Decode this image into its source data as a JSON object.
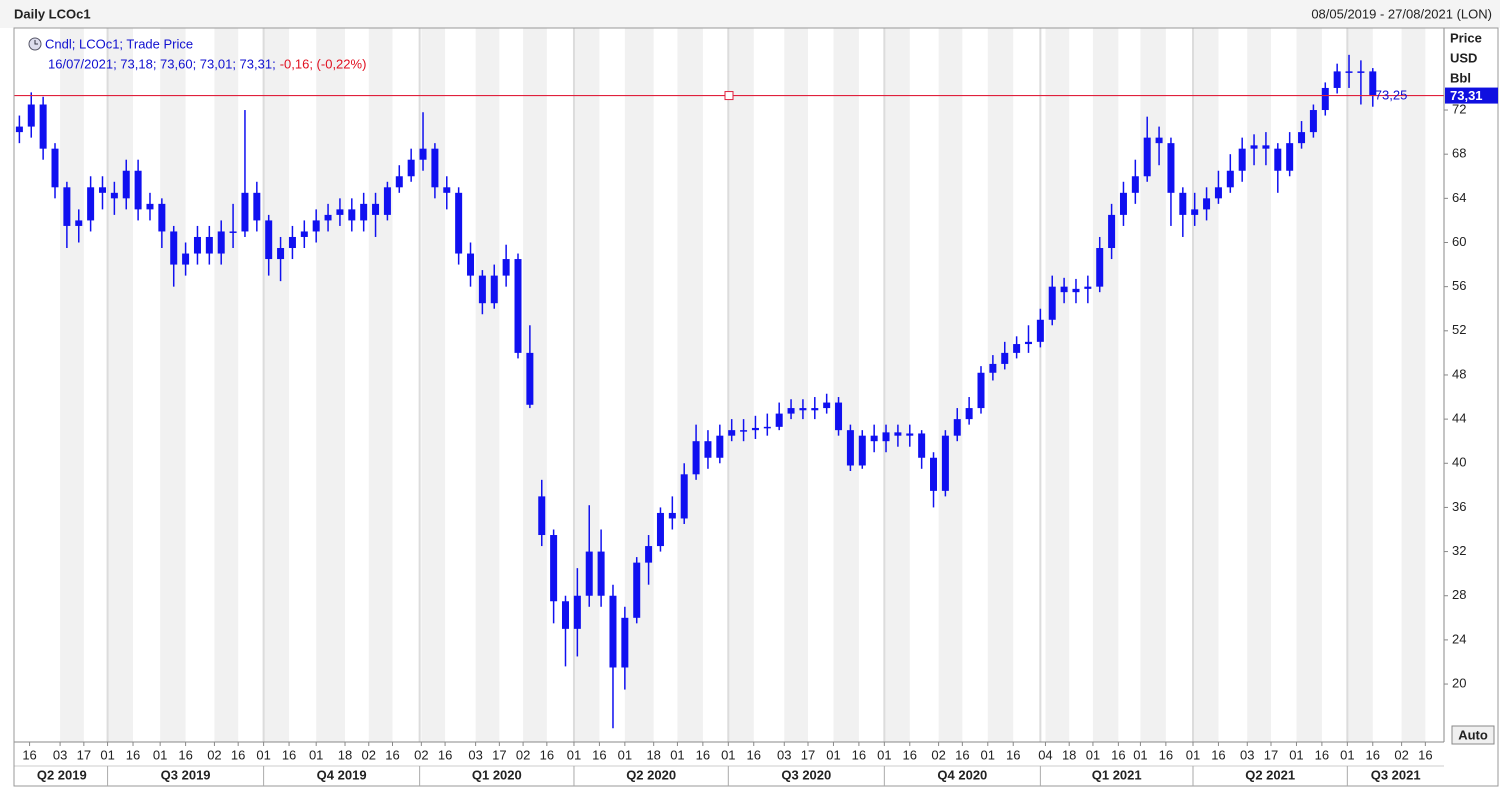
{
  "chart_data": {
    "type": "candlestick",
    "title": "Daily LCOc1",
    "subtitle": "08/05/2019 - 27/08/2021 (LON)",
    "legend_label": "Cndl; LCOc1; Trade Price",
    "legend_values": "16/07/2021; 73,18; 73,60; 73,01; 73,31;",
    "legend_change": "-0,16; (-0,22%)",
    "y_axis_title": "Price",
    "y_axis_unit": "USD",
    "y_axis_per": "Bbl",
    "auto_button": "Auto",
    "color": "#1010f0",
    "line_color": "#e0203c",
    "x": [
      "2019-05-10",
      "2019-05-17",
      "2019-05-24",
      "2019-05-31",
      "2019-06-07",
      "2019-06-14",
      "2019-06-21",
      "2019-06-28",
      "2019-07-05",
      "2019-07-12",
      "2019-07-19",
      "2019-07-26",
      "2019-08-02",
      "2019-08-09",
      "2019-08-16",
      "2019-08-23",
      "2019-08-30",
      "2019-09-06",
      "2019-09-13",
      "2019-09-20",
      "2019-09-27",
      "2019-10-04",
      "2019-10-11",
      "2019-10-18",
      "2019-10-25",
      "2019-11-01",
      "2019-11-08",
      "2019-11-15",
      "2019-11-22",
      "2019-11-29",
      "2019-12-06",
      "2019-12-13",
      "2019-12-20",
      "2019-12-27",
      "2020-01-03",
      "2020-01-10",
      "2020-01-17",
      "2020-01-24",
      "2020-01-31",
      "2020-02-07",
      "2020-02-14",
      "2020-02-21",
      "2020-02-28",
      "2020-03-06",
      "2020-03-13",
      "2020-03-20",
      "2020-03-27",
      "2020-04-03",
      "2020-04-10",
      "2020-04-17",
      "2020-04-24",
      "2020-05-01",
      "2020-05-08",
      "2020-05-15",
      "2020-05-22",
      "2020-05-29",
      "2020-06-05",
      "2020-06-12",
      "2020-06-19",
      "2020-06-26",
      "2020-07-03",
      "2020-07-10",
      "2020-07-17",
      "2020-07-24",
      "2020-07-31",
      "2020-08-07",
      "2020-08-14",
      "2020-08-21",
      "2020-08-28",
      "2020-09-04",
      "2020-09-11",
      "2020-09-18",
      "2020-09-25",
      "2020-10-02",
      "2020-10-09",
      "2020-10-16",
      "2020-10-23",
      "2020-10-30",
      "2020-11-06",
      "2020-11-13",
      "2020-11-20",
      "2020-11-27",
      "2020-12-04",
      "2020-12-11",
      "2020-12-18",
      "2020-12-25",
      "2021-01-01",
      "2021-01-08",
      "2021-01-15",
      "2021-01-22",
      "2021-01-29",
      "2021-02-05",
      "2021-02-12",
      "2021-02-19",
      "2021-02-26",
      "2021-03-05",
      "2021-03-12",
      "2021-03-19",
      "2021-03-26",
      "2021-04-02",
      "2021-04-09",
      "2021-04-16",
      "2021-04-23",
      "2021-04-30",
      "2021-05-07",
      "2021-05-14",
      "2021-05-21",
      "2021-05-28",
      "2021-06-04",
      "2021-06-11",
      "2021-06-18",
      "2021-06-25",
      "2021-07-02",
      "2021-07-09",
      "2021-07-16"
    ],
    "open": [
      70,
      70.5,
      72.5,
      68.5,
      65,
      61.5,
      62,
      65,
      64.5,
      64,
      66.5,
      63,
      63.5,
      61,
      58,
      59,
      60.5,
      59,
      61,
      61,
      64.5,
      62,
      58.5,
      59.5,
      60.5,
      61,
      62,
      62.5,
      63,
      62,
      63.5,
      62.5,
      65,
      66,
      67.5,
      68.5,
      65,
      64.5,
      59,
      57,
      54.5,
      57,
      58.5,
      50,
      37,
      33.5,
      27.5,
      25,
      28,
      32,
      28,
      21.5,
      26,
      31,
      32.5,
      35.5,
      35,
      39,
      42,
      40.5,
      42.5,
      43,
      43,
      43.2,
      43.3,
      44.5,
      45,
      44.8,
      45,
      45.5,
      43,
      39.8,
      42.5,
      42,
      42.8,
      42.5,
      42.7,
      40.5,
      37.5,
      42.5,
      44,
      45,
      48.2,
      49,
      50,
      50.8,
      51,
      53,
      56,
      55.5,
      55.8,
      56,
      59.5,
      62.5,
      64.5,
      66,
      69.5,
      69,
      64.5,
      62.5,
      63,
      64,
      65,
      66.5,
      68.5,
      68.8,
      68.5,
      66.5,
      69,
      70,
      72,
      74,
      75.5,
      75.5,
      75.5
    ],
    "high": [
      71.5,
      73.6,
      73.2,
      69,
      65.5,
      63,
      66,
      66,
      65.5,
      67.5,
      67.5,
      64.5,
      64,
      61.5,
      60,
      61.5,
      61.5,
      62,
      63.5,
      72,
      65.5,
      62.5,
      60.5,
      61.5,
      62,
      63,
      63.5,
      64,
      64,
      64.5,
      64.5,
      65.5,
      67,
      68.5,
      71.8,
      69,
      66,
      65,
      60,
      57.5,
      58,
      59.8,
      59,
      52.5,
      38.5,
      34,
      28,
      30.5,
      36.2,
      34,
      29,
      27,
      31.5,
      33.5,
      36,
      37,
      40,
      43.5,
      43,
      43.5,
      44,
      44,
      44.3,
      44.5,
      45.5,
      45.8,
      45.8,
      46,
      46.3,
      46,
      43.5,
      43,
      43.5,
      43.5,
      43.5,
      43.5,
      43,
      41,
      43,
      45,
      46,
      48.8,
      49.8,
      51,
      51.5,
      52.5,
      54,
      57,
      56.8,
      56.7,
      57,
      60.5,
      63.5,
      65.5,
      67.5,
      71.4,
      70.5,
      69.5,
      65,
      64.5,
      65,
      66.5,
      68,
      69.5,
      69.8,
      70,
      69,
      70,
      71,
      72.5,
      74.5,
      76.2,
      77,
      76.5,
      75.8
    ],
    "low": [
      69,
      69.5,
      67.5,
      64,
      59.5,
      60,
      61,
      63,
      62.5,
      63,
      62,
      62,
      59.5,
      56,
      57,
      58,
      58,
      58,
      59.5,
      60.5,
      61,
      57,
      56.5,
      58.5,
      59.5,
      60,
      61,
      61.5,
      61,
      61,
      60.5,
      62,
      64.5,
      65.5,
      66.5,
      64,
      63,
      58,
      56,
      53.5,
      54,
      56,
      49.5,
      45,
      32.5,
      25.5,
      21.6,
      22.5,
      27,
      27,
      16,
      19.5,
      25.5,
      29,
      32,
      34,
      34.5,
      38.5,
      39.5,
      40,
      42,
      42,
      42.2,
      42.5,
      43,
      44,
      44,
      44,
      44.5,
      42.5,
      39.3,
      39.5,
      41,
      41,
      41.5,
      41.5,
      39.5,
      36,
      37,
      42,
      43.5,
      44.5,
      47.5,
      48.5,
      49.5,
      50,
      50.5,
      52.5,
      54.5,
      54.5,
      54.5,
      55.5,
      58.5,
      61.5,
      63.5,
      65.5,
      67,
      61.5,
      60.5,
      61.5,
      62,
      63.5,
      64.5,
      65.5,
      67,
      67,
      64.5,
      66,
      68.5,
      69.5,
      71.5,
      73.5,
      74,
      72.5,
      72.3
    ],
    "close": [
      70.5,
      72.5,
      68.5,
      65,
      61.5,
      62,
      65,
      64.5,
      64,
      66.5,
      63,
      63.5,
      61,
      58,
      59,
      60.5,
      59,
      61,
      61,
      64.5,
      62,
      58.5,
      59.5,
      60.5,
      61,
      62,
      62.5,
      63,
      62,
      63.5,
      62.5,
      65,
      66,
      67.5,
      68.5,
      65,
      64.5,
      59,
      57,
      54.5,
      57,
      58.5,
      50,
      45.3,
      33.5,
      27.5,
      25,
      28,
      32,
      28,
      21.5,
      26,
      31,
      32.5,
      35.5,
      35,
      39,
      42,
      40.5,
      42.5,
      43,
      43,
      43.2,
      43.3,
      44.5,
      45,
      44.8,
      45,
      45.5,
      43,
      39.8,
      42.5,
      42,
      42.8,
      42.5,
      42.7,
      40.5,
      37.5,
      42.5,
      44,
      45,
      48.2,
      49,
      50,
      50.8,
      51,
      53,
      56,
      55.5,
      55.8,
      56,
      59.5,
      62.5,
      64.5,
      66,
      69.5,
      69,
      64.5,
      62.5,
      63,
      64,
      65,
      66.5,
      68.5,
      68.8,
      68.5,
      66.5,
      69,
      70,
      72,
      74,
      75.5,
      75.5,
      75.5,
      73.31
    ],
    "last_price": {
      "value": 73.31,
      "label": "73,31"
    },
    "annotation": {
      "value": 73.25,
      "label": "73,25"
    },
    "xlim": [
      "2019-05-08",
      "2021-08-27"
    ],
    "ylim": [
      14.75,
      79.25
    ],
    "yticks": [
      20,
      24,
      28,
      32,
      36,
      40,
      44,
      48,
      52,
      56,
      60,
      64,
      68,
      72
    ],
    "xticks": [
      {
        "value": "2019-05-16",
        "label": "16"
      },
      {
        "value": "2019-06-03",
        "label": "03"
      },
      {
        "value": "2019-06-17",
        "label": "17"
      },
      {
        "value": "2019-07-01",
        "label": "01"
      },
      {
        "value": "2019-07-16",
        "label": "16"
      },
      {
        "value": "2019-08-01",
        "label": "01"
      },
      {
        "value": "2019-08-16",
        "label": "16"
      },
      {
        "value": "2019-09-02",
        "label": "02"
      },
      {
        "value": "2019-09-16",
        "label": "16"
      },
      {
        "value": "2019-10-01",
        "label": "01"
      },
      {
        "value": "2019-10-16",
        "label": "16"
      },
      {
        "value": "2019-11-01",
        "label": "01"
      },
      {
        "value": "2019-11-18",
        "label": "18"
      },
      {
        "value": "2019-12-02",
        "label": "02"
      },
      {
        "value": "2019-12-16",
        "label": "16"
      },
      {
        "value": "2020-01-02",
        "label": "02"
      },
      {
        "value": "2020-01-16",
        "label": "16"
      },
      {
        "value": "2020-02-03",
        "label": "03"
      },
      {
        "value": "2020-02-17",
        "label": "17"
      },
      {
        "value": "2020-03-02",
        "label": "02"
      },
      {
        "value": "2020-03-16",
        "label": "16"
      },
      {
        "value": "2020-04-01",
        "label": "01"
      },
      {
        "value": "2020-04-16",
        "label": "16"
      },
      {
        "value": "2020-05-01",
        "label": "01"
      },
      {
        "value": "2020-05-18",
        "label": "18"
      },
      {
        "value": "2020-06-01",
        "label": "01"
      },
      {
        "value": "2020-06-16",
        "label": "16"
      },
      {
        "value": "2020-07-01",
        "label": "01"
      },
      {
        "value": "2020-07-16",
        "label": "16"
      },
      {
        "value": "2020-08-03",
        "label": "03"
      },
      {
        "value": "2020-08-17",
        "label": "17"
      },
      {
        "value": "2020-09-01",
        "label": "01"
      },
      {
        "value": "2020-09-16",
        "label": "16"
      },
      {
        "value": "2020-10-01",
        "label": "01"
      },
      {
        "value": "2020-10-16",
        "label": "16"
      },
      {
        "value": "2020-11-02",
        "label": "02"
      },
      {
        "value": "2020-11-16",
        "label": "16"
      },
      {
        "value": "2020-12-01",
        "label": "01"
      },
      {
        "value": "2020-12-16",
        "label": "16"
      },
      {
        "value": "2021-01-04",
        "label": "04"
      },
      {
        "value": "2021-01-18",
        "label": "18"
      },
      {
        "value": "2021-02-01",
        "label": "01"
      },
      {
        "value": "2021-02-16",
        "label": "16"
      },
      {
        "value": "2021-03-01",
        "label": "01"
      },
      {
        "value": "2021-03-16",
        "label": "16"
      },
      {
        "value": "2021-04-01",
        "label": "01"
      },
      {
        "value": "2021-04-16",
        "label": "16"
      },
      {
        "value": "2021-05-03",
        "label": "03"
      },
      {
        "value": "2021-05-17",
        "label": "17"
      },
      {
        "value": "2021-06-01",
        "label": "01"
      },
      {
        "value": "2021-06-16",
        "label": "16"
      },
      {
        "value": "2021-07-01",
        "label": "01"
      },
      {
        "value": "2021-07-16",
        "label": "16"
      },
      {
        "value": "2021-08-02",
        "label": "02"
      },
      {
        "value": "2021-08-16",
        "label": "16"
      }
    ],
    "quarters": [
      {
        "value": "2019-04-01",
        "label": "Q2 2019"
      },
      {
        "value": "2019-07-01",
        "label": "Q3 2019"
      },
      {
        "value": "2019-10-01",
        "label": "Q4 2019"
      },
      {
        "value": "2020-01-01",
        "label": "Q1 2020"
      },
      {
        "value": "2020-04-01",
        "label": "Q2 2020"
      },
      {
        "value": "2020-07-01",
        "label": "Q3 2020"
      },
      {
        "value": "2020-10-01",
        "label": "Q4 2020"
      },
      {
        "value": "2021-01-01",
        "label": "Q1 2021"
      },
      {
        "value": "2021-04-01",
        "label": "Q2 2021"
      },
      {
        "value": "2021-07-01",
        "label": "Q3 2021"
      }
    ]
  }
}
